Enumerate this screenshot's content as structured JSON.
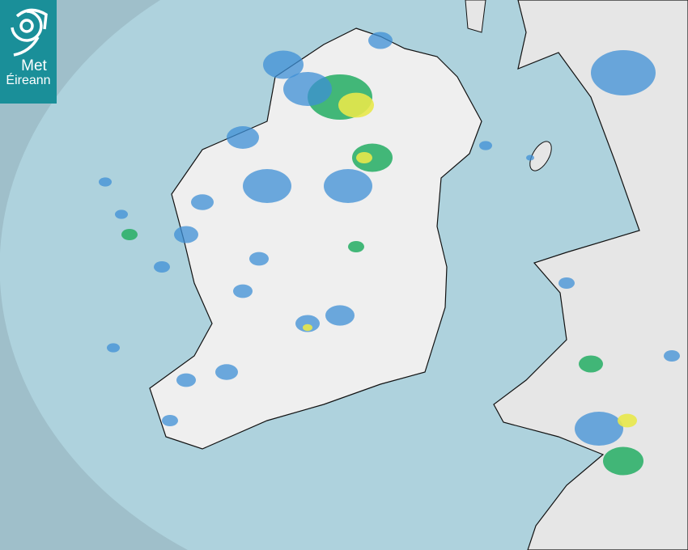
{
  "logo": {
    "line1": "Met",
    "line2": "Éireann"
  },
  "colors": {
    "outside_coverage": "#9fbfca",
    "radar_coverage": "#aed2dd",
    "land": "#efefef",
    "rain_light": "#3d8fd6",
    "rain_moderate": "#2fb06a",
    "rain_heavy": "#e8e84a"
  }
}
